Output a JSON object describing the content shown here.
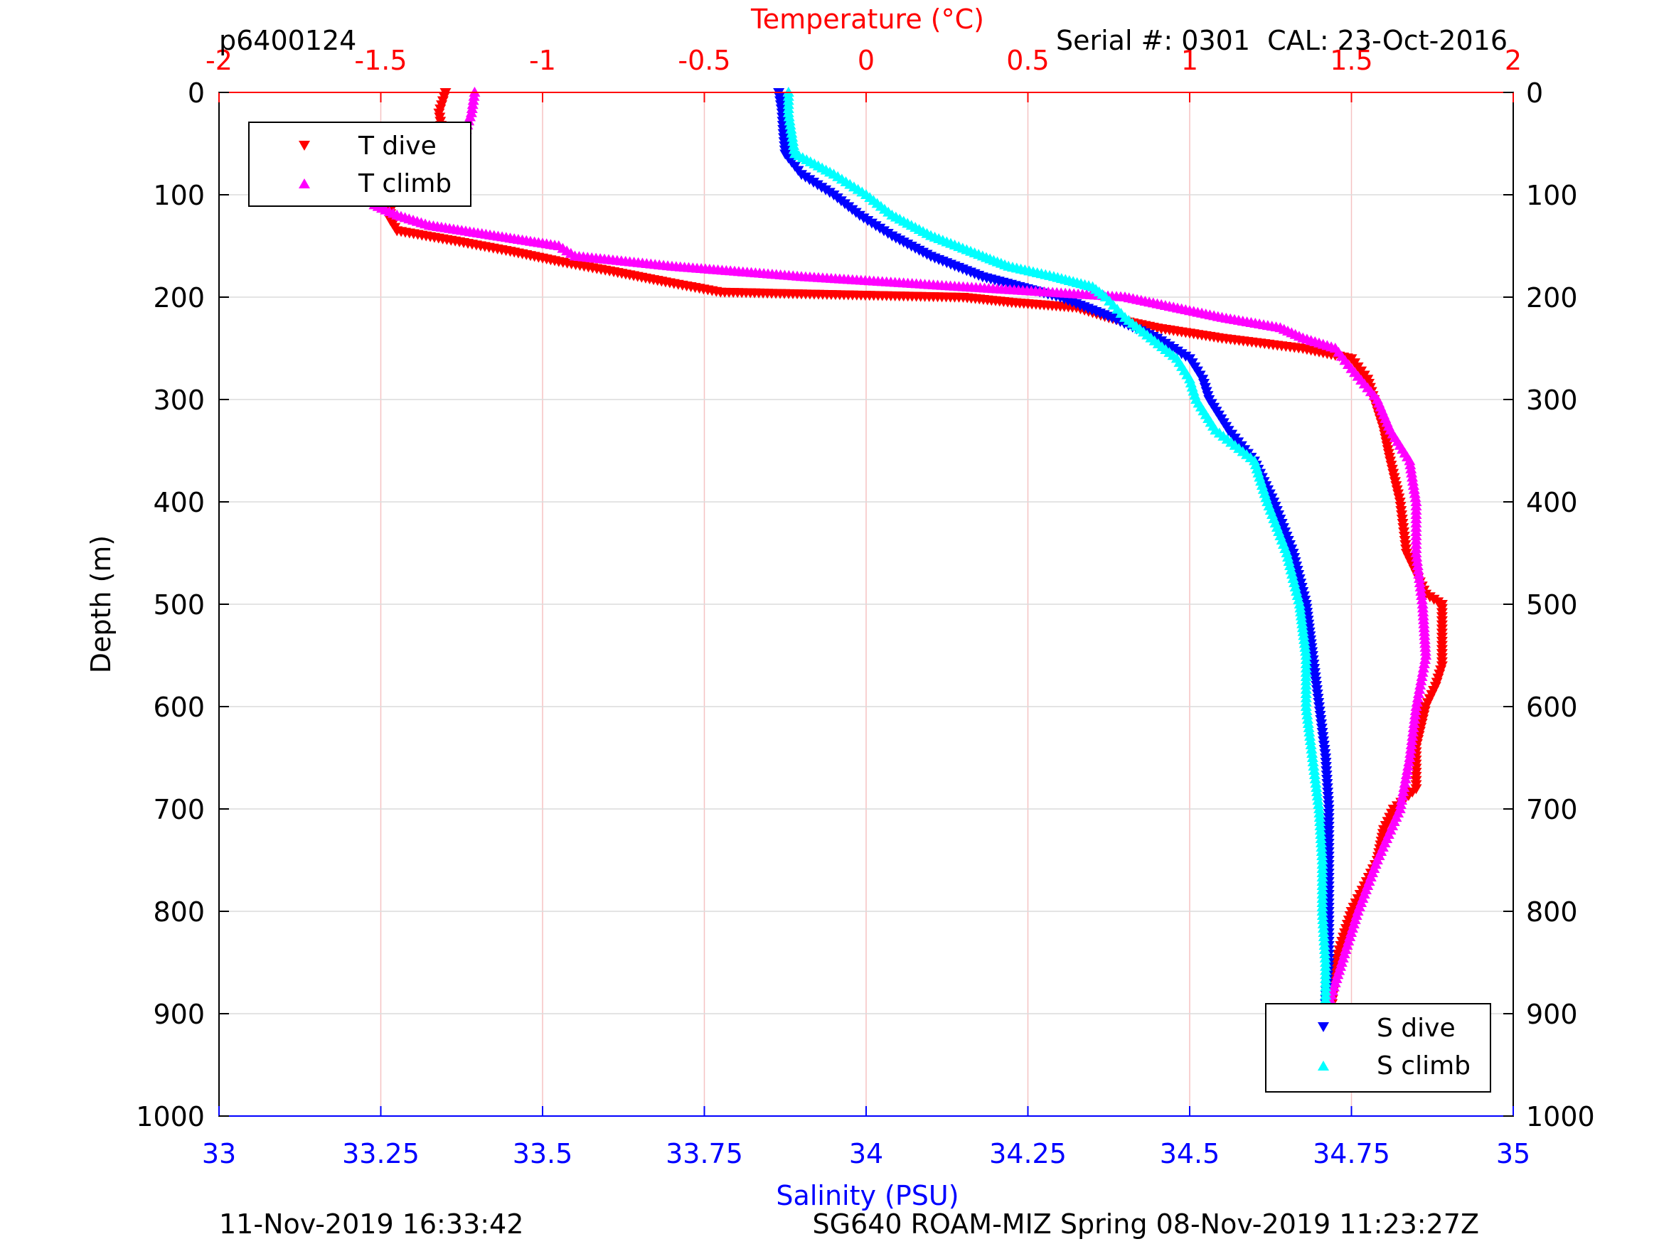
{
  "chart_data": {
    "type": "scatter",
    "id_label": "p6400124",
    "serial_label": "Serial #: 0301  CAL: 23-Oct-2016",
    "bottom_left_label": "11-Nov-2019 16:33:42",
    "bottom_right_label": "SG640 ROAM-MIZ Spring 08-Nov-2019 11:23:27Z",
    "top_axis": {
      "label": "Temperature (°C)",
      "range": [
        -2,
        2
      ],
      "ticks": [
        "-2",
        "-1.5",
        "-1",
        "-0.5",
        "0",
        "0.5",
        "1",
        "1.5",
        "2"
      ],
      "color": "#ff0000"
    },
    "bottom_axis": {
      "label": "Salinity (PSU)",
      "range": [
        33,
        35
      ],
      "ticks": [
        "33",
        "33.25",
        "33.5",
        "33.75",
        "34",
        "34.25",
        "34.5",
        "34.75",
        "35"
      ],
      "color": "#0000ff"
    },
    "y_axis": {
      "label": "Depth (m)",
      "range": [
        0,
        1000
      ],
      "reversed": true,
      "ticks": [
        "0",
        "100",
        "200",
        "300",
        "400",
        "500",
        "600",
        "700",
        "800",
        "900",
        "1000"
      ]
    },
    "legends": [
      {
        "position": "top-left",
        "entries": [
          {
            "label": "T dive",
            "marker": "triangle-down",
            "color": "#ff0000"
          },
          {
            "label": "T climb",
            "marker": "triangle-up",
            "color": "#ff00ff"
          }
        ]
      },
      {
        "position": "bottom-right",
        "entries": [
          {
            "label": "S dive",
            "marker": "triangle-down",
            "color": "#0000ff"
          },
          {
            "label": "S climb",
            "marker": "triangle-up",
            "color": "#00ffff"
          }
        ]
      }
    ],
    "series": [
      {
        "name": "T dive",
        "axis": "temperature",
        "marker": "triangle-down",
        "color": "#ff0000",
        "depth": [
          0,
          20,
          40,
          60,
          80,
          100,
          115,
          125,
          135,
          145,
          155,
          165,
          175,
          185,
          195,
          200,
          205,
          210,
          220,
          230,
          240,
          250,
          260,
          280,
          300,
          330,
          360,
          400,
          450,
          490,
          500,
          560,
          580,
          600,
          640,
          680,
          700,
          720,
          750,
          800,
          850,
          890
        ],
        "temp": [
          -1.3,
          -1.32,
          -1.31,
          -1.38,
          -1.48,
          -1.47,
          -1.47,
          -1.47,
          -1.45,
          -1.27,
          -1.1,
          -0.95,
          -0.78,
          -0.62,
          -0.45,
          0.3,
          0.45,
          0.65,
          0.75,
          0.9,
          1.1,
          1.35,
          1.5,
          1.55,
          1.57,
          1.6,
          1.62,
          1.65,
          1.67,
          1.73,
          1.78,
          1.78,
          1.76,
          1.73,
          1.7,
          1.7,
          1.63,
          1.6,
          1.58,
          1.5,
          1.45,
          1.44
        ]
      },
      {
        "name": "T climb",
        "axis": "temperature",
        "marker": "triangle-up",
        "color": "#ff00ff",
        "depth": [
          0,
          20,
          40,
          60,
          80,
          100,
          110,
          120,
          130,
          140,
          150,
          160,
          170,
          180,
          190,
          200,
          210,
          220,
          230,
          240,
          250,
          270,
          300,
          330,
          360,
          400,
          450,
          500,
          550,
          600,
          650,
          700,
          750,
          800,
          850,
          890
        ],
        "temp": [
          -1.21,
          -1.22,
          -1.24,
          -1.35,
          -1.5,
          -1.5,
          -1.52,
          -1.45,
          -1.35,
          -1.15,
          -0.95,
          -0.9,
          -0.6,
          -0.2,
          0.3,
          0.8,
          0.95,
          1.1,
          1.28,
          1.35,
          1.45,
          1.5,
          1.58,
          1.62,
          1.68,
          1.7,
          1.7,
          1.72,
          1.73,
          1.7,
          1.68,
          1.65,
          1.58,
          1.52,
          1.47,
          1.43
        ]
      },
      {
        "name": "S dive",
        "axis": "salinity",
        "marker": "triangle-down",
        "color": "#0000ff",
        "depth": [
          0,
          20,
          40,
          60,
          80,
          100,
          120,
          140,
          160,
          180,
          200,
          220,
          240,
          260,
          280,
          300,
          330,
          360,
          400,
          450,
          500,
          550,
          600,
          650,
          700,
          750,
          800,
          850,
          890
        ],
        "sal": [
          33.865,
          33.87,
          33.872,
          33.875,
          33.9,
          33.95,
          33.99,
          34.04,
          34.1,
          34.18,
          34.3,
          34.38,
          34.45,
          34.5,
          34.52,
          34.53,
          34.56,
          34.6,
          34.63,
          34.66,
          34.68,
          34.69,
          34.7,
          34.71,
          34.715,
          34.715,
          34.715,
          34.715,
          34.71
        ]
      },
      {
        "name": "S climb",
        "axis": "salinity",
        "marker": "triangle-up",
        "color": "#00ffff",
        "depth": [
          0,
          20,
          40,
          60,
          80,
          100,
          120,
          140,
          160,
          170,
          180,
          190,
          200,
          220,
          240,
          260,
          280,
          300,
          330,
          360,
          400,
          450,
          500,
          550,
          600,
          650,
          700,
          750,
          800,
          850,
          890
        ],
        "sal": [
          33.88,
          33.88,
          33.885,
          33.89,
          33.95,
          34.0,
          34.04,
          34.1,
          34.18,
          34.22,
          34.29,
          34.35,
          34.37,
          34.4,
          34.44,
          34.48,
          34.5,
          34.51,
          34.54,
          34.6,
          34.62,
          34.65,
          34.67,
          34.68,
          34.68,
          34.69,
          34.7,
          34.705,
          34.705,
          34.71,
          34.71
        ]
      }
    ]
  }
}
